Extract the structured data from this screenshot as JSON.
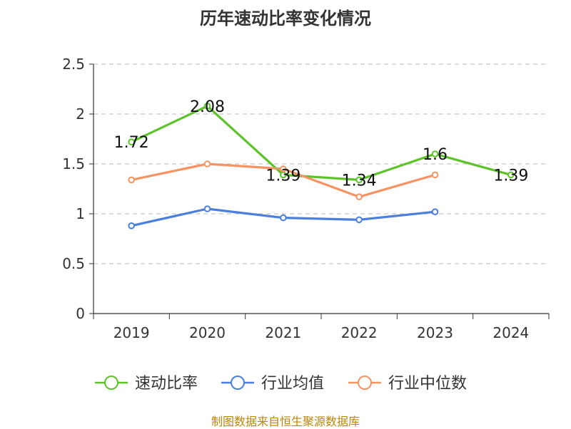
{
  "chart_data": {
    "type": "line",
    "title": "历年速动比率变化情况",
    "categories": [
      "2019",
      "2020",
      "2021",
      "2022",
      "2023",
      "2024"
    ],
    "ylim": [
      0,
      2.5
    ],
    "yticks": [
      "0",
      "0.5",
      "1",
      "1.5",
      "2",
      "2.5"
    ],
    "grid": true,
    "legend_position": "bottom",
    "series": [
      {
        "name": "速动比率",
        "color": "#5ec22b",
        "values": [
          1.72,
          2.08,
          1.39,
          1.34,
          1.6,
          1.39
        ],
        "labels": [
          "1.72",
          "2.08",
          "1.39",
          "1.34",
          "1.6",
          "1.39"
        ]
      },
      {
        "name": "行业均值",
        "color": "#4a7fdb",
        "values": [
          0.88,
          1.05,
          0.96,
          0.94,
          1.02,
          null
        ]
      },
      {
        "name": "行业中位数",
        "color": "#f59462",
        "values": [
          1.34,
          1.5,
          1.45,
          1.17,
          1.39,
          null
        ]
      }
    ],
    "source": "制图数据来自恒生聚源数据库"
  }
}
